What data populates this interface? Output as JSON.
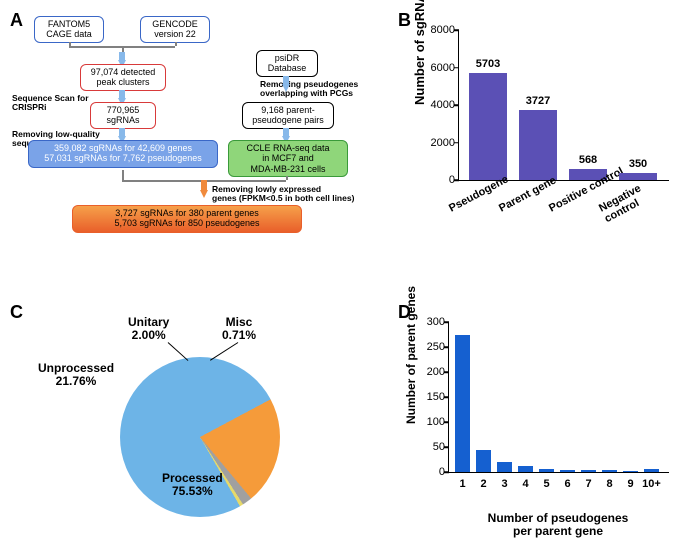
{
  "panelLabels": {
    "A": "A",
    "B": "B",
    "C": "C",
    "D": "D"
  },
  "colors": {
    "barFill": "#5b50b5",
    "pieProcessed": "#6db4e7",
    "pieUnprocessed": "#f59b3a",
    "pieUnitary": "#a0a0a0",
    "pieMisc": "#e6d96a",
    "flowBlueBorder": "#3a67c7",
    "flowRedBorder": "#d83a3a",
    "flowBlueFill": "#7aa3e8",
    "flowGreenFill": "#8fd67a",
    "flowOrangeTop": "#f6a04a",
    "flowOrangeBottom": "#e95f2a",
    "arrowLightBlue": "#88b9ea",
    "arrowOrange": "#f08a3c",
    "black": "#000000",
    "gray": "#808080"
  },
  "panelA": {
    "boxes": {
      "fantom": "FANTOM5\nCAGE data",
      "gencode": "GENCODE\nversion 22",
      "peaks": "97,074 detected\npeak clusters",
      "sgAll": "770,965\nsgRNAs",
      "psidr": "psiDR\nDatabase",
      "pairs": "9,168 parent-\npseudogene pairs",
      "sgFiltered": "359,082 sgRNAs for 42,609 genes\n57,031 sgRNAs for 7,762 pseudogenes",
      "ccle": "CCLE RNA-seq data\nin MCF7 and\nMDA-MB-231 cells",
      "final": "3,727 sgRNAs for 380 parent genes\n5,703 sgRNAs for 850 pseudogenes"
    },
    "labels": {
      "scan": "Sequence Scan for CRISPRi",
      "lowq": "Removing low-quality\nsequences",
      "overlap": "Removing pseudogenes\noverlapping with PCGs",
      "lowexp": "Removing lowly expressed\ngenes (FPKM<0.5 in both cell lines)"
    }
  },
  "panelB": {
    "ylabel": "Number of sgRNAs",
    "ymax": 8000,
    "ytick_step": 2000,
    "categories": [
      "Pseudogene",
      "Parent gene",
      "Positive control",
      "Negative control"
    ],
    "values": [
      5703,
      3727,
      568,
      350
    ]
  },
  "panelC": {
    "slices": [
      {
        "label": "Processed",
        "pct": 75.53,
        "color": "#6db4e7"
      },
      {
        "label": "Unprocessed",
        "pct": 21.76,
        "color": "#f59b3a"
      },
      {
        "label": "Unitary",
        "pct": 2.0,
        "color": "#a0a0a0"
      },
      {
        "label": "Misc",
        "pct": 0.71,
        "color": "#e6d96a"
      }
    ]
  },
  "panelD": {
    "ylabel": "Number of parent genes",
    "xlabel": "Number of pseudogenes\nper parent gene",
    "ymax": 300,
    "ytick_step": 50,
    "categories": [
      "1",
      "2",
      "3",
      "4",
      "5",
      "6",
      "7",
      "8",
      "9",
      "10+"
    ],
    "values": [
      275,
      44,
      20,
      12,
      6,
      4,
      4,
      5,
      3,
      6
    ]
  }
}
